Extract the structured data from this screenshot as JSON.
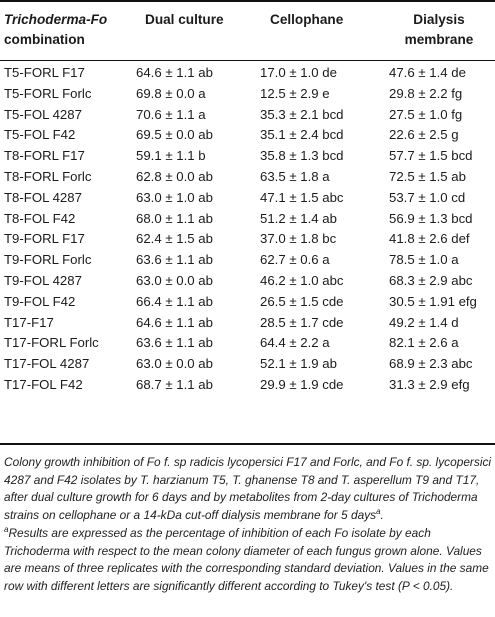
{
  "table": {
    "headers": [
      [
        "Trichoderma-Fo",
        "combination"
      ],
      [
        "Dual culture"
      ],
      [
        "Cellophane"
      ],
      [
        "Dialysis",
        "membrane"
      ]
    ],
    "rows": [
      [
        "T5-FORL F17",
        "64.6 ± 1.1 ab",
        "17.0 ± 1.0 de",
        "47.6 ± 1.4 de"
      ],
      [
        "T5-FORL Forlc",
        "69.8 ± 0.0 a",
        "12.5 ± 2.9 e",
        "29.8 ± 2.2 fg"
      ],
      [
        "T5-FOL 4287",
        "70.6 ± 1.1 a",
        "35.3 ± 2.1 bcd",
        "27.5 ± 1.0 fg"
      ],
      [
        "T5-FOL F42",
        "69.5 ± 0.0 ab",
        "35.1 ± 2.4 bcd",
        "22.6 ± 2.5 g"
      ],
      [
        "T8-FORL F17",
        "59.1 ± 1.1 b",
        "35.8 ± 1.3 bcd",
        "57.7 ± 1.5 bcd"
      ],
      [
        "T8-FORL Forlc",
        "62.8 ± 0.0 ab",
        "63.5 ± 1.8 a",
        "72.5 ± 1.5 ab"
      ],
      [
        "T8-FOL 4287",
        "63.0 ± 1.0 ab",
        "47.1 ± 1.5 abc",
        "53.7 ± 1.0 cd"
      ],
      [
        "T8-FOL F42",
        "68.0 ± 1.1 ab",
        "51.2 ± 1.4 ab",
        "56.9 ± 1.3 bcd"
      ],
      [
        "T9-FORL F17",
        "62.4 ± 1.5 ab",
        "37.0 ± 1.8 bc",
        "41.8 ± 2.6 def"
      ],
      [
        "T9-FORL Forlc",
        "63.6 ± 1.1 ab",
        "62.7 ± 0.6 a",
        "78.5 ± 1.0 a"
      ],
      [
        "T9-FOL 4287",
        "63.0 ± 0.0 ab",
        "46.2 ± 1.0 abc",
        "68.3 ± 2.9 abc"
      ],
      [
        "T9-FOL F42",
        "66.4 ± 1.1 ab",
        "26.5 ± 1.5 cde",
        "30.5 ± 1.91 efg"
      ],
      [
        "T17-F17",
        "64.6 ± 1.1 ab",
        "28.5 ± 1.7 cde",
        "49.2 ± 1.4 d"
      ],
      [
        "T17-FORL Forlc",
        "63.6 ± 1.1 ab",
        "64.4 ± 2.2 a",
        "82.1 ± 2.6 a"
      ],
      [
        "T17-FOL 4287",
        "63.0 ± 0.0 ab",
        "52.1 ± 1.9 ab",
        "68.9 ± 2.3 abc"
      ],
      [
        "T17-FOL F42",
        "68.7 ± 1.1 ab",
        "29.9 ± 1.9 cde",
        "31.3 ± 2.9 efg"
      ]
    ]
  },
  "caption": {
    "p1": "Colony growth inhibition of Fo f. sp radicis lycopersici F17 and Forlc, and Fo f. sp. lycopersici 4287 and F42 isolates by T. harzianum T5, T. ghanense T8 and T. asperellum T9 and T17, after dual culture growth for 6 days and by metabolites from 2-day cultures of Trichoderma strains on cellophane or a 14-kDa cut-off dialysis membrane for 5 days",
    "p1_sup": "a",
    "p1_end": ".",
    "p2_sup": "a",
    "p2": "Results are expressed as the percentage of inhibition of each Fo isolate by each Trichoderma with respect to the mean colony diameter of each fungus grown alone. Values are means of three replicates with the corresponding standard deviation. Values in the same row with different letters are significantly different according to Tukey's test (P < 0.05)."
  }
}
